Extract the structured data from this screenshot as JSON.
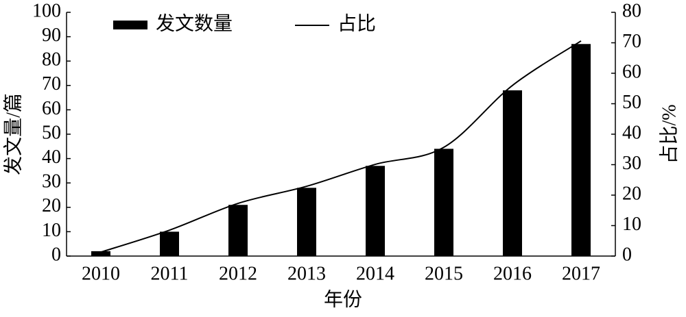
{
  "chart_data": {
    "type": "bar",
    "x_label": "年份",
    "y_label": "发文量/篇",
    "y2_label": "占比/%",
    "categories": [
      "2010",
      "2011",
      "2012",
      "2013",
      "2014",
      "2015",
      "2016",
      "2017"
    ],
    "series": [
      {
        "name": "发文数量",
        "type": "bar",
        "color": "#000000",
        "values": [
          2,
          10,
          21,
          28,
          37,
          44,
          68,
          87
        ]
      },
      {
        "name": "占比",
        "type": "line",
        "axis": "y2",
        "color": "#000000",
        "values": [
          1.3,
          8.5,
          17.3,
          22.9,
          30.1,
          35.7,
          56,
          70.6
        ]
      }
    ],
    "ylim": [
      0,
      100
    ],
    "yticks": [
      0,
      10,
      20,
      30,
      40,
      50,
      60,
      70,
      80,
      90,
      100
    ],
    "y2lim": [
      0,
      80
    ],
    "y2ticks": [
      0,
      10,
      20,
      30,
      40,
      50,
      60,
      70,
      80
    ],
    "grid": false,
    "legend": "top-left"
  }
}
